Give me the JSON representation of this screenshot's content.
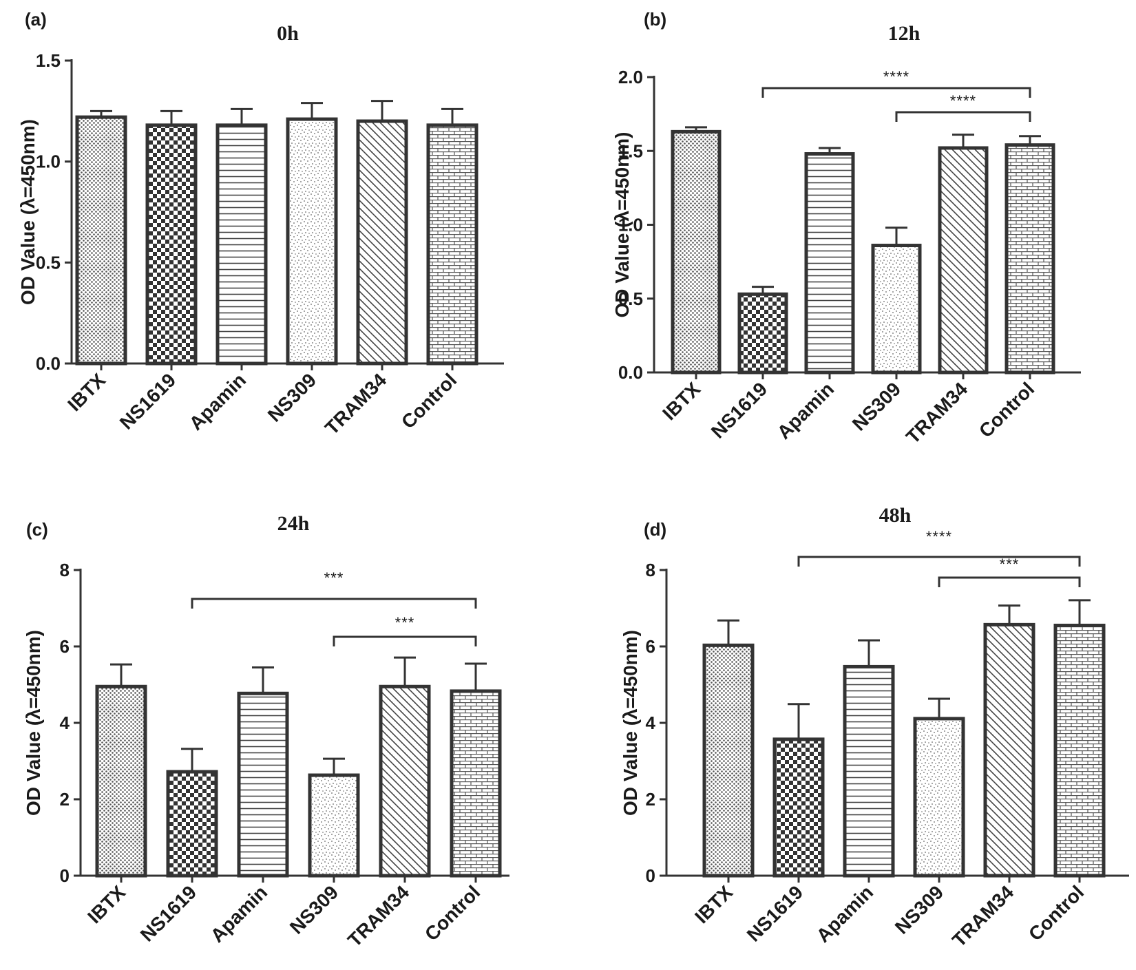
{
  "figure": {
    "colors": {
      "ink": "#333333",
      "background": "#ffffff"
    },
    "patterns": [
      "dense-dots",
      "checker",
      "horizontal-lines",
      "speckle",
      "diagonal-lines",
      "brick"
    ]
  },
  "chart_data": [
    {
      "panel": "(a)",
      "type": "bar",
      "title": "0h",
      "ylabel": "OD Value (λ=450nm)",
      "xlabel": "",
      "ylim": [
        0,
        1.5
      ],
      "yticks": [
        "0.0",
        "0.5",
        "1.0",
        "1.5"
      ],
      "categories": [
        "IBTX",
        "NS1619",
        "Apamin",
        "NS309",
        "TRAM34",
        "Control"
      ],
      "values": [
        1.22,
        1.18,
        1.18,
        1.21,
        1.2,
        1.18
      ],
      "errors": [
        0.03,
        0.07,
        0.08,
        0.08,
        0.1,
        0.08
      ],
      "significance": []
    },
    {
      "panel": "(b)",
      "type": "bar",
      "title": "12h",
      "ylabel": "OD Value (λ=450nm)",
      "xlabel": "",
      "ylim": [
        0,
        2.0
      ],
      "yticks": [
        "0.0",
        "0.5",
        "1.0",
        "1.5",
        "2.0"
      ],
      "categories": [
        "IBTX",
        "NS1619",
        "Apamin",
        "NS309",
        "TRAM34",
        "Control"
      ],
      "values": [
        1.63,
        0.53,
        1.48,
        0.86,
        1.52,
        1.54
      ],
      "errors": [
        0.03,
        0.05,
        0.04,
        0.12,
        0.09,
        0.06
      ],
      "significance": [
        {
          "from": "NS1619",
          "to": "Control",
          "label": "****"
        },
        {
          "from": "NS309",
          "to": "Control",
          "label": "****"
        }
      ]
    },
    {
      "panel": "(c)",
      "type": "bar",
      "title": "24h",
      "ylabel": "OD Value (λ=450nm)",
      "xlabel": "",
      "ylim": [
        0,
        8
      ],
      "yticks": [
        "0",
        "2",
        "4",
        "6",
        "8"
      ],
      "categories": [
        "IBTX",
        "NS1619",
        "Apamin",
        "NS309",
        "TRAM34",
        "Control"
      ],
      "values": [
        4.95,
        2.72,
        4.77,
        2.63,
        4.95,
        4.83
      ],
      "errors": [
        0.58,
        0.6,
        0.68,
        0.43,
        0.76,
        0.72
      ],
      "significance": [
        {
          "from": "NS1619",
          "to": "Control",
          "label": "***"
        },
        {
          "from": "NS309",
          "to": "Control",
          "label": "***"
        }
      ]
    },
    {
      "panel": "(d)",
      "type": "bar",
      "title": "48h",
      "ylabel": "OD Value (λ=450nm)",
      "xlabel": "",
      "ylim": [
        0,
        8
      ],
      "yticks": [
        "0",
        "2",
        "4",
        "6",
        "8"
      ],
      "categories": [
        "IBTX",
        "NS1619",
        "Apamin",
        "NS309",
        "TRAM34",
        "Control"
      ],
      "values": [
        6.03,
        3.57,
        5.47,
        4.11,
        6.57,
        6.55
      ],
      "errors": [
        0.65,
        0.92,
        0.69,
        0.52,
        0.5,
        0.66
      ],
      "significance": [
        {
          "from": "NS1619",
          "to": "Control",
          "label": "****"
        },
        {
          "from": "NS309",
          "to": "Control",
          "label": "***"
        }
      ]
    }
  ]
}
